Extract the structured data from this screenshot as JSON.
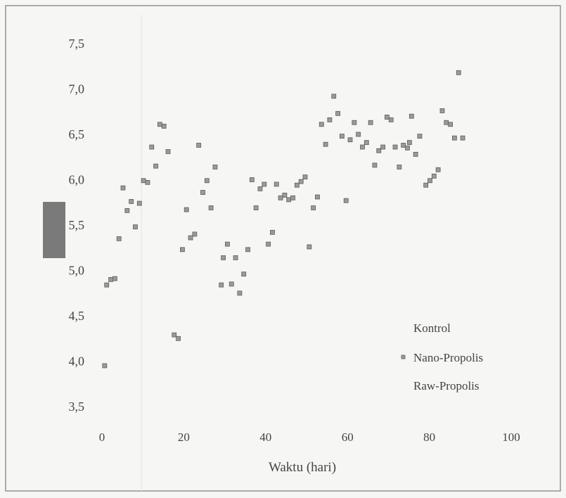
{
  "chart_data": {
    "type": "scatter",
    "xlabel": "Waktu (hari)",
    "ylabel": "",
    "xlim": [
      0,
      100
    ],
    "ylim": [
      3.5,
      7.5
    ],
    "x_ticks": [
      "0",
      "20",
      "40",
      "60",
      "80",
      "100"
    ],
    "y_ticks": [
      "3,5",
      "4,0",
      "4,5",
      "5,0",
      "5,5",
      "6,0",
      "6,5",
      "7,0",
      "7,5"
    ],
    "grid": false,
    "legend_position": "bottom-right",
    "legend": [
      "Kontrol",
      "Nano-Propolis",
      "Raw-Propolis"
    ],
    "colors": {
      "marker_fill": "#9a9a9a",
      "marker_edge": "#5e5e5e",
      "axis": "#777777",
      "text": "#444444",
      "shaded_box": "#7a7a7a"
    },
    "points": [
      [
        1,
        3.95
      ],
      [
        1.5,
        4.84
      ],
      [
        2.5,
        4.9
      ],
      [
        3.5,
        4.91
      ],
      [
        4.5,
        5.35
      ],
      [
        5.5,
        5.91
      ],
      [
        6.5,
        5.66
      ],
      [
        7.5,
        5.76
      ],
      [
        8.5,
        5.48
      ],
      [
        9.5,
        5.74
      ],
      [
        10.5,
        5.99
      ],
      [
        11.5,
        5.97
      ],
      [
        12.5,
        6.36
      ],
      [
        13.5,
        6.15
      ],
      [
        14.5,
        6.61
      ],
      [
        15.5,
        6.59
      ],
      [
        16.5,
        6.31
      ],
      [
        18,
        4.29
      ],
      [
        19,
        4.25
      ],
      [
        20,
        5.23
      ],
      [
        21,
        5.67
      ],
      [
        22,
        5.36
      ],
      [
        23,
        5.4
      ],
      [
        24,
        6.38
      ],
      [
        25,
        5.86
      ],
      [
        26,
        5.99
      ],
      [
        27,
        5.69
      ],
      [
        28,
        6.14
      ],
      [
        29.5,
        4.84
      ],
      [
        30,
        5.14
      ],
      [
        31,
        5.29
      ],
      [
        32,
        4.85
      ],
      [
        33,
        5.14
      ],
      [
        34,
        4.75
      ],
      [
        35,
        4.96
      ],
      [
        36,
        5.23
      ],
      [
        37,
        6.0
      ],
      [
        38,
        5.69
      ],
      [
        39,
        5.9
      ],
      [
        40,
        5.95
      ],
      [
        41,
        5.29
      ],
      [
        42,
        5.42
      ],
      [
        43,
        5.95
      ],
      [
        44,
        5.8
      ],
      [
        45,
        5.83
      ],
      [
        46,
        5.78
      ],
      [
        47,
        5.8
      ],
      [
        48,
        5.94
      ],
      [
        49,
        5.98
      ],
      [
        50,
        6.03
      ],
      [
        51,
        5.26
      ],
      [
        52,
        5.69
      ],
      [
        53,
        5.81
      ],
      [
        54,
        6.61
      ],
      [
        55,
        6.39
      ],
      [
        56,
        6.66
      ],
      [
        57,
        6.92
      ],
      [
        58,
        6.73
      ],
      [
        59,
        6.48
      ],
      [
        60,
        5.77
      ],
      [
        61,
        6.44
      ],
      [
        62,
        6.63
      ],
      [
        63,
        6.5
      ],
      [
        64,
        6.36
      ],
      [
        65,
        6.41
      ],
      [
        66,
        6.63
      ],
      [
        67,
        6.16
      ],
      [
        68,
        6.32
      ],
      [
        69,
        6.36
      ],
      [
        70,
        6.69
      ],
      [
        71,
        6.66
      ],
      [
        72,
        6.36
      ],
      [
        73,
        6.14
      ],
      [
        74,
        6.38
      ],
      [
        75,
        6.35
      ],
      [
        75.5,
        6.41
      ],
      [
        76,
        6.7
      ],
      [
        77,
        6.28
      ],
      [
        78,
        6.48
      ],
      [
        79.5,
        5.94
      ],
      [
        80.5,
        5.99
      ],
      [
        81.5,
        6.04
      ],
      [
        82.5,
        6.11
      ],
      [
        83.5,
        6.76
      ],
      [
        84.5,
        6.63
      ],
      [
        85.5,
        6.61
      ],
      [
        86.5,
        6.46
      ],
      [
        87.5,
        7.18
      ],
      [
        88.5,
        6.46
      ]
    ]
  }
}
